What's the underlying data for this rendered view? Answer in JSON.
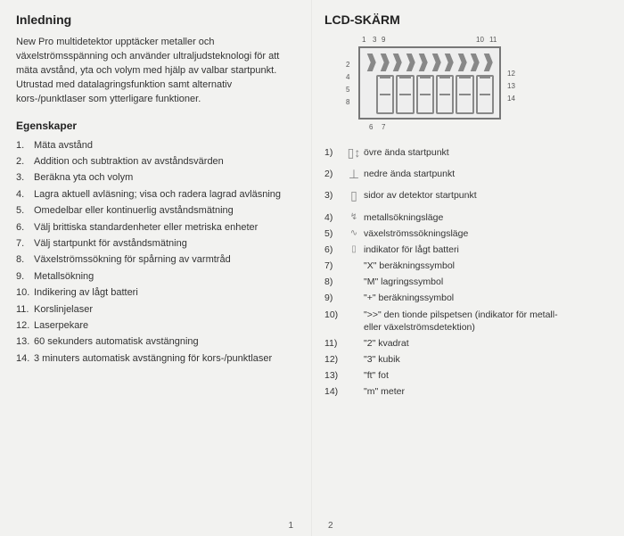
{
  "left": {
    "title": "Inledning",
    "intro": "New Pro multidetektor upptäcker metaller och växelströmsspänning och använder ultraljudsteknologi för att mäta avstånd, yta och volym med hjälp av valbar startpunkt. Utrustad med datalagringsfunktion samt alternativ kors-/punktlaser som ytterligare funktioner.",
    "properties_title": "Egenskaper",
    "properties": [
      "Mäta avstånd",
      "Addition och subtraktion av avståndsvärden",
      "Beräkna yta och volym",
      "Lagra aktuell avläsning; visa och radera lagrad avläsning",
      "Omedelbar eller kontinuerlig avståndsmätning",
      "Välj brittiska standardenheter eller metriska enheter",
      "Välj startpunkt för avståndsmätning",
      "Växelströmssökning för spårning av varmtråd",
      "Metallsökning",
      "Indikering av lågt batteri",
      "Korslinjelaser",
      "Laserpekare",
      "60 sekunders automatisk avstängning",
      "3 minuters automatisk avstängning för kors-/punktlaser"
    ],
    "page_num": "1"
  },
  "right": {
    "title": "LCD-SKÄRM",
    "callouts": {
      "c1": "1",
      "c3": "3",
      "c9": "9",
      "c10": "10",
      "c11": "11",
      "c2": "2",
      "c4": "4",
      "c5": "5",
      "c8": "8",
      "c6": "6",
      "c7": "7",
      "c12": "12",
      "c13": "13",
      "c14": "14"
    },
    "legend": [
      {
        "n": "1)",
        "icon": "▯↕",
        "text": "övre ända startpunkt",
        "tall": true
      },
      {
        "n": "2)",
        "icon": "⊥",
        "text": "nedre ända startpunkt",
        "tall": true
      },
      {
        "n": "3)",
        "icon": "▯",
        "text": "sidor av detektor startpunkt",
        "tall": true
      },
      {
        "n": "4)",
        "icon": "↯",
        "text": "metallsökningsläge"
      },
      {
        "n": "5)",
        "icon": "∿",
        "text": "växelströmssökningsläge"
      },
      {
        "n": "6)",
        "icon": "▯",
        "text": "indikator för lågt batteri"
      },
      {
        "n": "7)",
        "icon": "",
        "text": "\"X\"  beräkningssymbol"
      },
      {
        "n": "8)",
        "icon": "",
        "text": "\"M\"  lagringssymbol"
      },
      {
        "n": "9)",
        "icon": "",
        "text": "\"+\"  beräkningssymbol"
      },
      {
        "n": "10)",
        "icon": "",
        "text": "\">>\"    den tionde pilspetsen (indikator för metall-",
        "sub": "eller växelströmsdetektion)"
      },
      {
        "n": "11)",
        "icon": "",
        "text": "\"2\"    kvadrat"
      },
      {
        "n": "12)",
        "icon": "",
        "text": "\"3\"    kubik"
      },
      {
        "n": "13)",
        "icon": "",
        "text": "\"ft\"   fot"
      },
      {
        "n": "14)",
        "icon": "",
        "text": "\"m\"   meter"
      }
    ],
    "page_num": "2"
  }
}
